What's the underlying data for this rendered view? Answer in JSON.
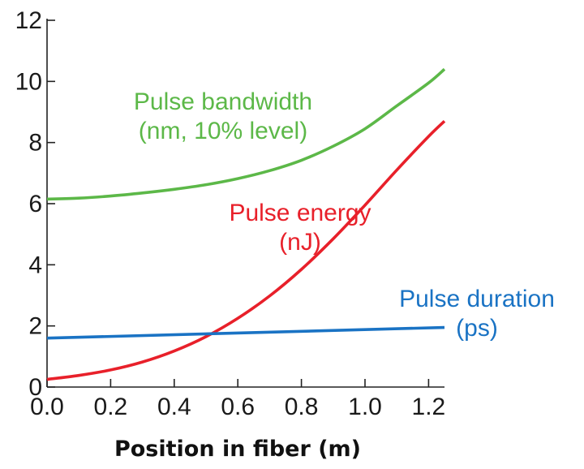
{
  "chart_data": {
    "type": "line",
    "title": "",
    "xlabel": "Position in fiber (m)",
    "ylabel": "",
    "xlim": [
      0.0,
      1.25
    ],
    "ylim": [
      0,
      12
    ],
    "x_ticks": [
      "0.0",
      "0.2",
      "0.4",
      "0.6",
      "0.8",
      "1.0",
      "1.2"
    ],
    "y_ticks": [
      "0",
      "2",
      "4",
      "6",
      "8",
      "10",
      "12"
    ],
    "grid": false,
    "legend": "inline",
    "series": [
      {
        "name": "Pulse bandwidth",
        "label_lines": [
          "Pulse bandwidth",
          "(nm, 10% level)"
        ],
        "color": "#5cb848",
        "x": [
          0.0,
          0.1,
          0.2,
          0.3,
          0.4,
          0.5,
          0.6,
          0.7,
          0.8,
          0.9,
          1.0,
          1.1,
          1.2,
          1.25
        ],
        "y": [
          6.15,
          6.18,
          6.25,
          6.35,
          6.47,
          6.62,
          6.82,
          7.08,
          7.42,
          7.88,
          8.45,
          9.2,
          9.95,
          10.4
        ]
      },
      {
        "name": "Pulse energy",
        "label_lines": [
          "Pulse energy",
          "(nJ)"
        ],
        "color": "#e8202a",
        "x": [
          0.0,
          0.1,
          0.2,
          0.3,
          0.4,
          0.5,
          0.6,
          0.7,
          0.8,
          0.9,
          1.0,
          1.1,
          1.2,
          1.25
        ],
        "y": [
          0.25,
          0.38,
          0.56,
          0.82,
          1.18,
          1.65,
          2.25,
          2.98,
          3.85,
          4.85,
          5.95,
          7.1,
          8.2,
          8.7
        ]
      },
      {
        "name": "Pulse duration",
        "label_lines": [
          "Pulse duration",
          "(ps)"
        ],
        "color": "#1a73c4",
        "x": [
          0.0,
          1.25
        ],
        "y": [
          1.6,
          1.95
        ]
      }
    ]
  }
}
